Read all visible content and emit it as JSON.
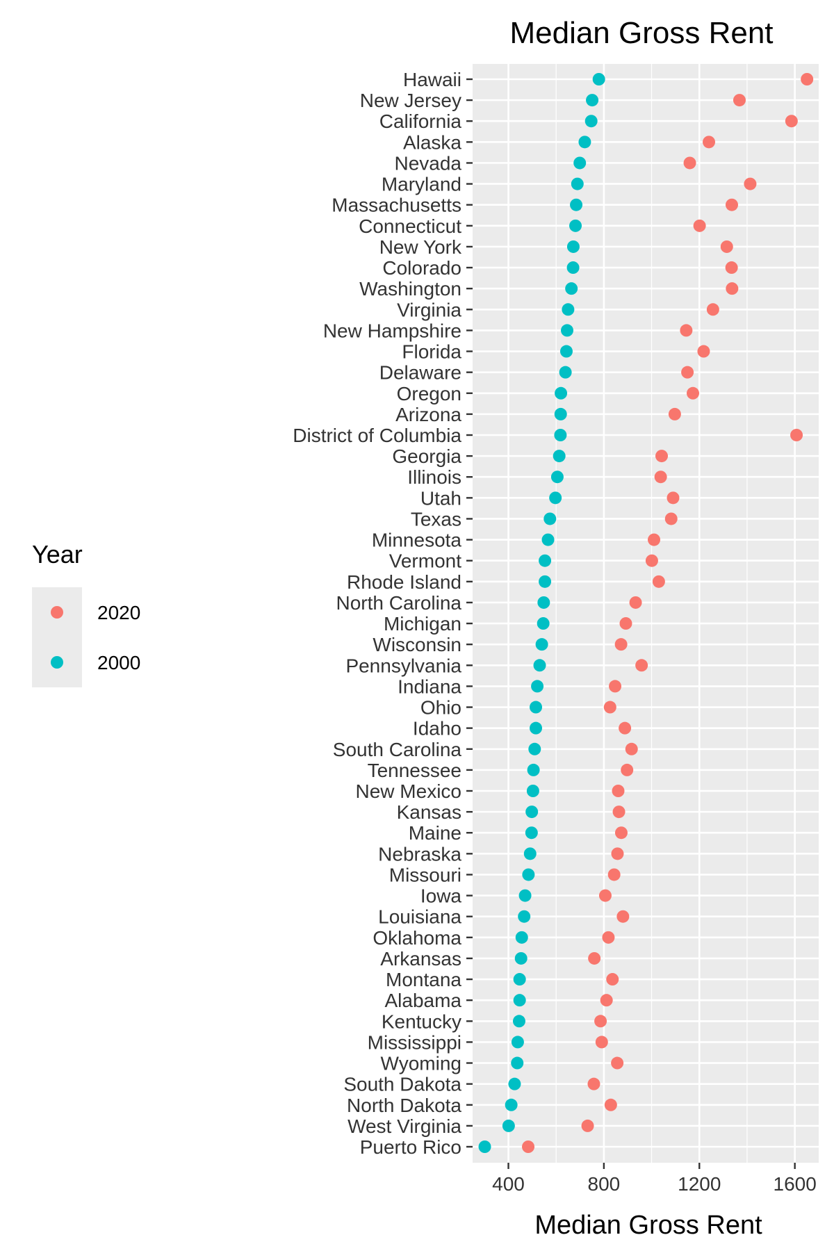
{
  "chart_data": {
    "type": "scatter",
    "title": "Median Gross Rent",
    "xlabel": "Median Gross Rent",
    "ylabel": "",
    "xlim": [
      250,
      1700
    ],
    "xticks": [
      400,
      800,
      1200,
      1600
    ],
    "grid": true,
    "legend": {
      "title": "Year",
      "position": "left",
      "entries": [
        {
          "label": "2020",
          "color": "#F8766D"
        },
        {
          "label": "2000",
          "color": "#00BFC4"
        }
      ]
    },
    "categories": [
      "Hawaii",
      "New Jersey",
      "California",
      "Alaska",
      "Nevada",
      "Maryland",
      "Massachusetts",
      "Connecticut",
      "New York",
      "Colorado",
      "Washington",
      "Virginia",
      "New Hampshire",
      "Florida",
      "Delaware",
      "Oregon",
      "Arizona",
      "District of Columbia",
      "Georgia",
      "Illinois",
      "Utah",
      "Texas",
      "Minnesota",
      "Vermont",
      "Rhode Island",
      "North Carolina",
      "Michigan",
      "Wisconsin",
      "Pennsylvania",
      "Indiana",
      "Ohio",
      "Idaho",
      "South Carolina",
      "Tennessee",
      "New Mexico",
      "Kansas",
      "Maine",
      "Nebraska",
      "Missouri",
      "Iowa",
      "Louisiana",
      "Oklahoma",
      "Arkansas",
      "Montana",
      "Alabama",
      "Kentucky",
      "Mississippi",
      "Wyoming",
      "South Dakota",
      "North Dakota",
      "West Virginia",
      "Puerto Rico"
    ],
    "series": [
      {
        "name": "2020",
        "color": "#F8766D",
        "values": [
          1651,
          1368,
          1586,
          1240,
          1160,
          1413,
          1336,
          1201,
          1315,
          1335,
          1337,
          1257,
          1145,
          1218,
          1150,
          1173,
          1097,
          1607,
          1042,
          1038,
          1090,
          1082,
          1010,
          1001,
          1030,
          933,
          892,
          872,
          958,
          847,
          826,
          888,
          916,
          897,
          860,
          863,
          873,
          857,
          843,
          806,
          880,
          819,
          760,
          836,
          811,
          786,
          791,
          856,
          758,
          829,
          732,
          483
        ]
      },
      {
        "name": "2000",
        "color": "#00BFC4",
        "values": [
          779,
          751,
          747,
          720,
          699,
          689,
          684,
          681,
          672,
          671,
          664,
          650,
          646,
          643,
          639,
          620,
          619,
          618,
          613,
          605,
          597,
          574,
          566,
          553,
          553,
          548,
          546,
          540,
          531,
          521,
          515,
          515,
          510,
          505,
          503,
          498,
          497,
          491,
          484,
          470,
          466,
          456,
          453,
          447,
          447,
          445,
          439,
          437,
          426,
          412,
          401,
          301
        ]
      }
    ]
  }
}
